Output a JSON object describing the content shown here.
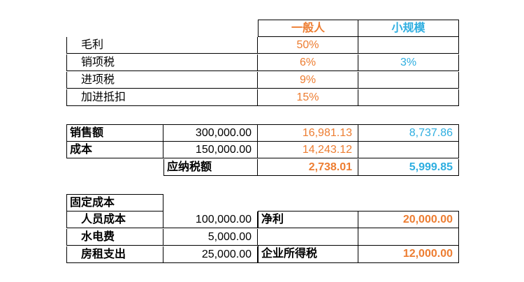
{
  "headers": {
    "general": "一般人",
    "small": "小规模"
  },
  "rates": {
    "gross_margin": {
      "label": "毛利",
      "general": "50%",
      "small": ""
    },
    "output_tax": {
      "label": "销项税",
      "general": "6%",
      "small": "3%"
    },
    "input_tax": {
      "label": "进项税",
      "general": "9%",
      "small": ""
    },
    "extra_deduction": {
      "label": "加进抵扣",
      "general": "15%",
      "small": ""
    }
  },
  "calc": {
    "sales": {
      "label": "销售额",
      "amount": "300,000.00",
      "general": "16,981.13",
      "small": "8,737.86"
    },
    "cost": {
      "label": "成本",
      "amount": "150,000.00",
      "general": "14,243.12",
      "small": ""
    },
    "payable": {
      "label": "应纳税额",
      "general": "2,738.01",
      "small": "5,999.85"
    }
  },
  "fixed": {
    "title": "固定成本",
    "staff": {
      "label": "人员成本",
      "amount": "100,000.00"
    },
    "utilities": {
      "label": "水电费",
      "amount": "5,000.00"
    },
    "rent": {
      "label": "房租支出",
      "amount": "25,000.00"
    },
    "net_profit": {
      "label": "净利",
      "value": "20,000.00"
    },
    "income_tax": {
      "label": "企业所得税",
      "value": "12,000.00"
    }
  },
  "colors": {
    "orange": "#ed7d31",
    "blue": "#2eaee0"
  }
}
